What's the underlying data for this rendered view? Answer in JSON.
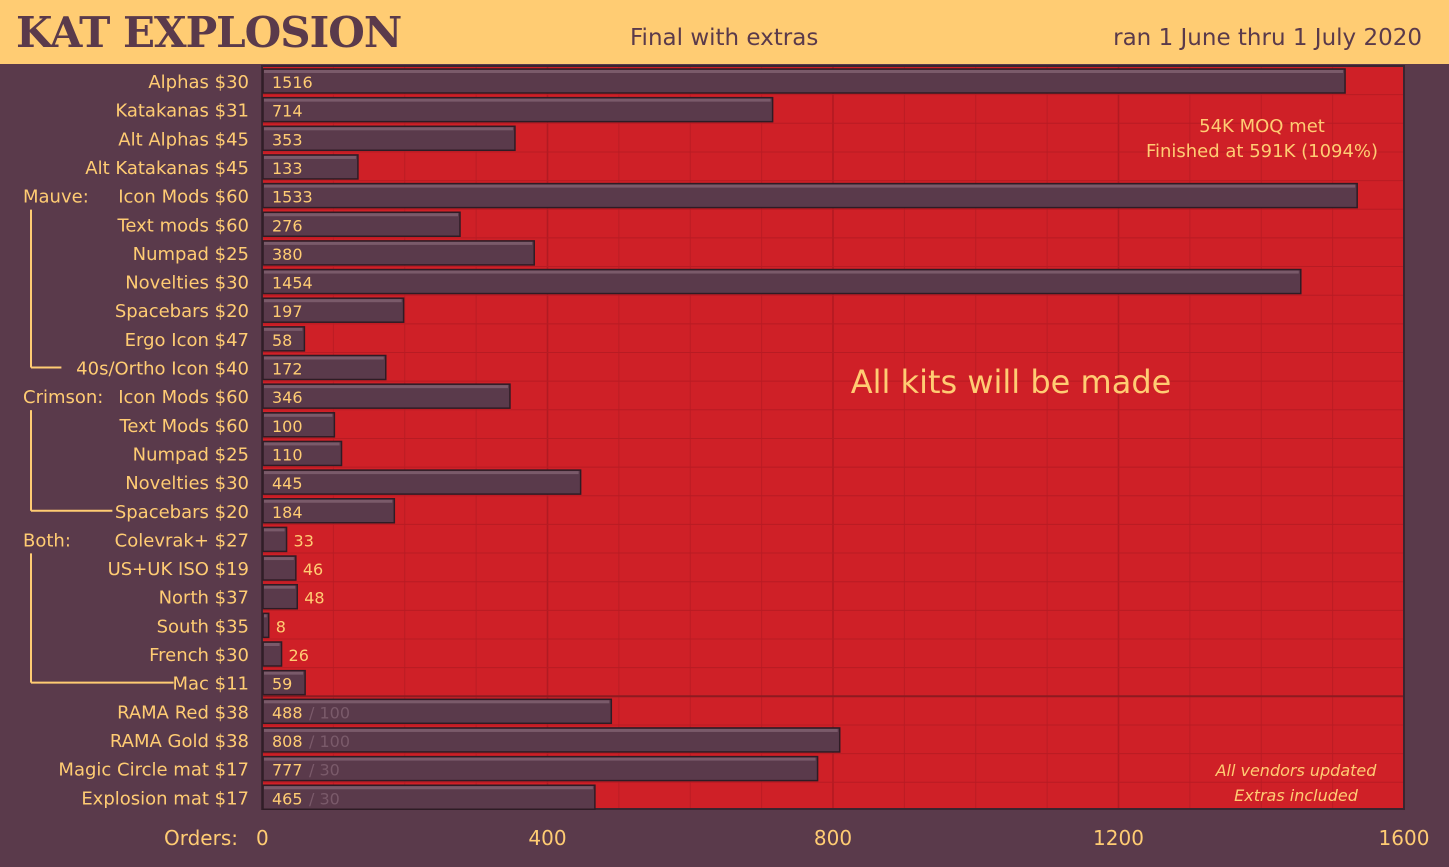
{
  "header": {
    "title": "KAT EXPLOSION",
    "subtitle": "Final with extras",
    "daterange": "ran 1 June thru 1 July 2020"
  },
  "chart_data": {
    "type": "bar",
    "orientation": "horizontal",
    "xaxis_prefix": "Orders:",
    "xlim": [
      0,
      1600
    ],
    "xticks": [
      0,
      400,
      800,
      1200,
      1600
    ],
    "grid": true,
    "groups": [
      {
        "label": "Mauve:",
        "first": 4,
        "last": 10
      },
      {
        "label": "Crimson:",
        "first": 11,
        "last": 15
      },
      {
        "label": "Both:",
        "first": 16,
        "last": 21
      }
    ],
    "categories": [
      "Alphas $30",
      "Katakanas $31",
      "Alt Alphas $45",
      "Alt Katakanas $45",
      "Icon Mods $60",
      "Text mods $60",
      "Numpad $25",
      "Novelties $30",
      "Spacebars $20",
      "Ergo Icon $47",
      "40s/Ortho Icon $40",
      "Icon Mods $60",
      "Text Mods $60",
      "Numpad $25",
      "Novelties $30",
      "Spacebars $20",
      "Colevrak+ $27",
      "US+UK ISO $19",
      "North $37",
      "South $35",
      "French $30",
      "Mac $11",
      "RAMA Red $38",
      "RAMA Gold $38",
      "Magic Circle mat $17",
      "Explosion mat $17"
    ],
    "values": [
      1516,
      714,
      353,
      133,
      1533,
      276,
      380,
      1454,
      197,
      58,
      172,
      346,
      100,
      110,
      445,
      184,
      33,
      46,
      48,
      8,
      26,
      59,
      488,
      808,
      777,
      465
    ],
    "limits": [
      null,
      null,
      null,
      null,
      null,
      null,
      null,
      null,
      null,
      null,
      null,
      null,
      null,
      null,
      null,
      null,
      null,
      null,
      null,
      null,
      null,
      null,
      "/ 100",
      "/ 100",
      "/ 30",
      "/ 30"
    ],
    "annotations": {
      "moq": "54K MOQ met",
      "finished": "Finished at 591K (1094%)",
      "kits": "All kits will be made",
      "vendors": "All vendors updated",
      "extras": "Extras included"
    },
    "colors": {
      "plot_bg": "#cf2027",
      "bar": "#5a3a4b",
      "bar_highlight": "#7a5a6a",
      "text": "#ffcc73",
      "page_bg": "#5a3a4b",
      "header_bg": "#ffcc73"
    }
  }
}
